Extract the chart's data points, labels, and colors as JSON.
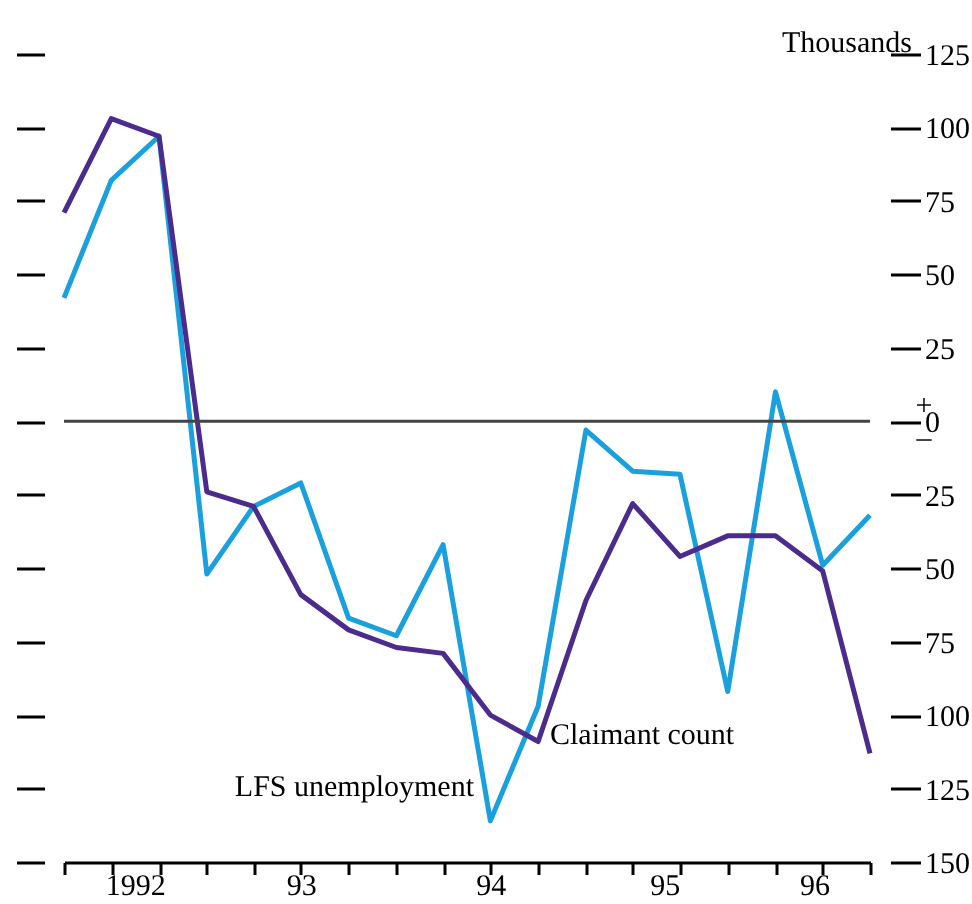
{
  "chart_data": {
    "type": "line",
    "x": [
      "1992-04",
      "1992-07",
      "1992-10",
      "1993-01",
      "1993-04",
      "1993-07",
      "1993-10",
      "1994-01",
      "1994-04",
      "1994-07",
      "1994-10",
      "1995-01",
      "1995-04",
      "1995-07",
      "1995-10",
      "1996-01",
      "1996-04",
      "1996-07"
    ],
    "series": [
      {
        "name": "LFS unemployment",
        "color": "#1aa0dc",
        "values": [
          42,
          82,
          97,
          -52,
          -29,
          -21,
          -67,
          -73,
          -42,
          -136,
          -97,
          -3,
          -17,
          -18,
          -92,
          10,
          -49,
          -32
        ]
      },
      {
        "name": "Claimant count",
        "color": "#4b2c8c",
        "values": [
          71,
          103,
          97,
          -24,
          -29,
          -59,
          -71,
          -77,
          -79,
          -100,
          -109,
          -61,
          -28,
          -46,
          -39,
          -39,
          -51,
          -113
        ]
      }
    ],
    "annotations": [
      "Thousands",
      "+",
      "–"
    ],
    "xlim": [
      "1992-04",
      "1996-07"
    ],
    "xticks": [
      {
        "value": "1992-04",
        "label": null
      },
      {
        "value": "1992-07",
        "label": null
      },
      {
        "value": "1992-10",
        "label": null
      },
      {
        "value": "1993-01",
        "label": null
      },
      {
        "value": "1993-04",
        "label": null
      },
      {
        "value": "1993-07",
        "label": null
      },
      {
        "value": "1993-10",
        "label": null
      },
      {
        "value": "1994-01",
        "label": null
      },
      {
        "value": "1994-04",
        "label": null
      },
      {
        "value": "1994-07",
        "label": null
      },
      {
        "value": "1994-10",
        "label": null
      },
      {
        "value": "1995-01",
        "label": null
      },
      {
        "value": "1995-04",
        "label": null
      },
      {
        "value": "1995-07",
        "label": null
      },
      {
        "value": "1995-10",
        "label": null
      },
      {
        "value": "1996-01",
        "label": null
      },
      {
        "value": "1996-04",
        "label": null
      },
      {
        "value": "1996-07",
        "label": null
      },
      {
        "value": "1992-08-15",
        "label": "1992"
      },
      {
        "value": "1993-07-01",
        "label": "93"
      },
      {
        "value": "1994-07-01",
        "label": "94"
      },
      {
        "value": "1995-06-01",
        "label": "95"
      },
      {
        "value": "1996-03-15",
        "label": "96"
      }
    ],
    "ylim": [
      -150,
      125
    ],
    "yticks": [
      125,
      100,
      75,
      50,
      25,
      0,
      {
        "value": -25,
        "label": "25"
      },
      {
        "value": -50,
        "label": "50"
      },
      {
        "value": -75,
        "label": "75"
      },
      {
        "value": -100,
        "label": "100"
      },
      {
        "value": -125,
        "label": "125"
      },
      {
        "value": -150,
        "label": "150"
      }
    ],
    "ref_lines": [
      {
        "axis": "y",
        "value": 0,
        "color": "#444444"
      }
    ],
    "grid": false,
    "legend": false,
    "marker": "none",
    "line_style": "solid"
  }
}
